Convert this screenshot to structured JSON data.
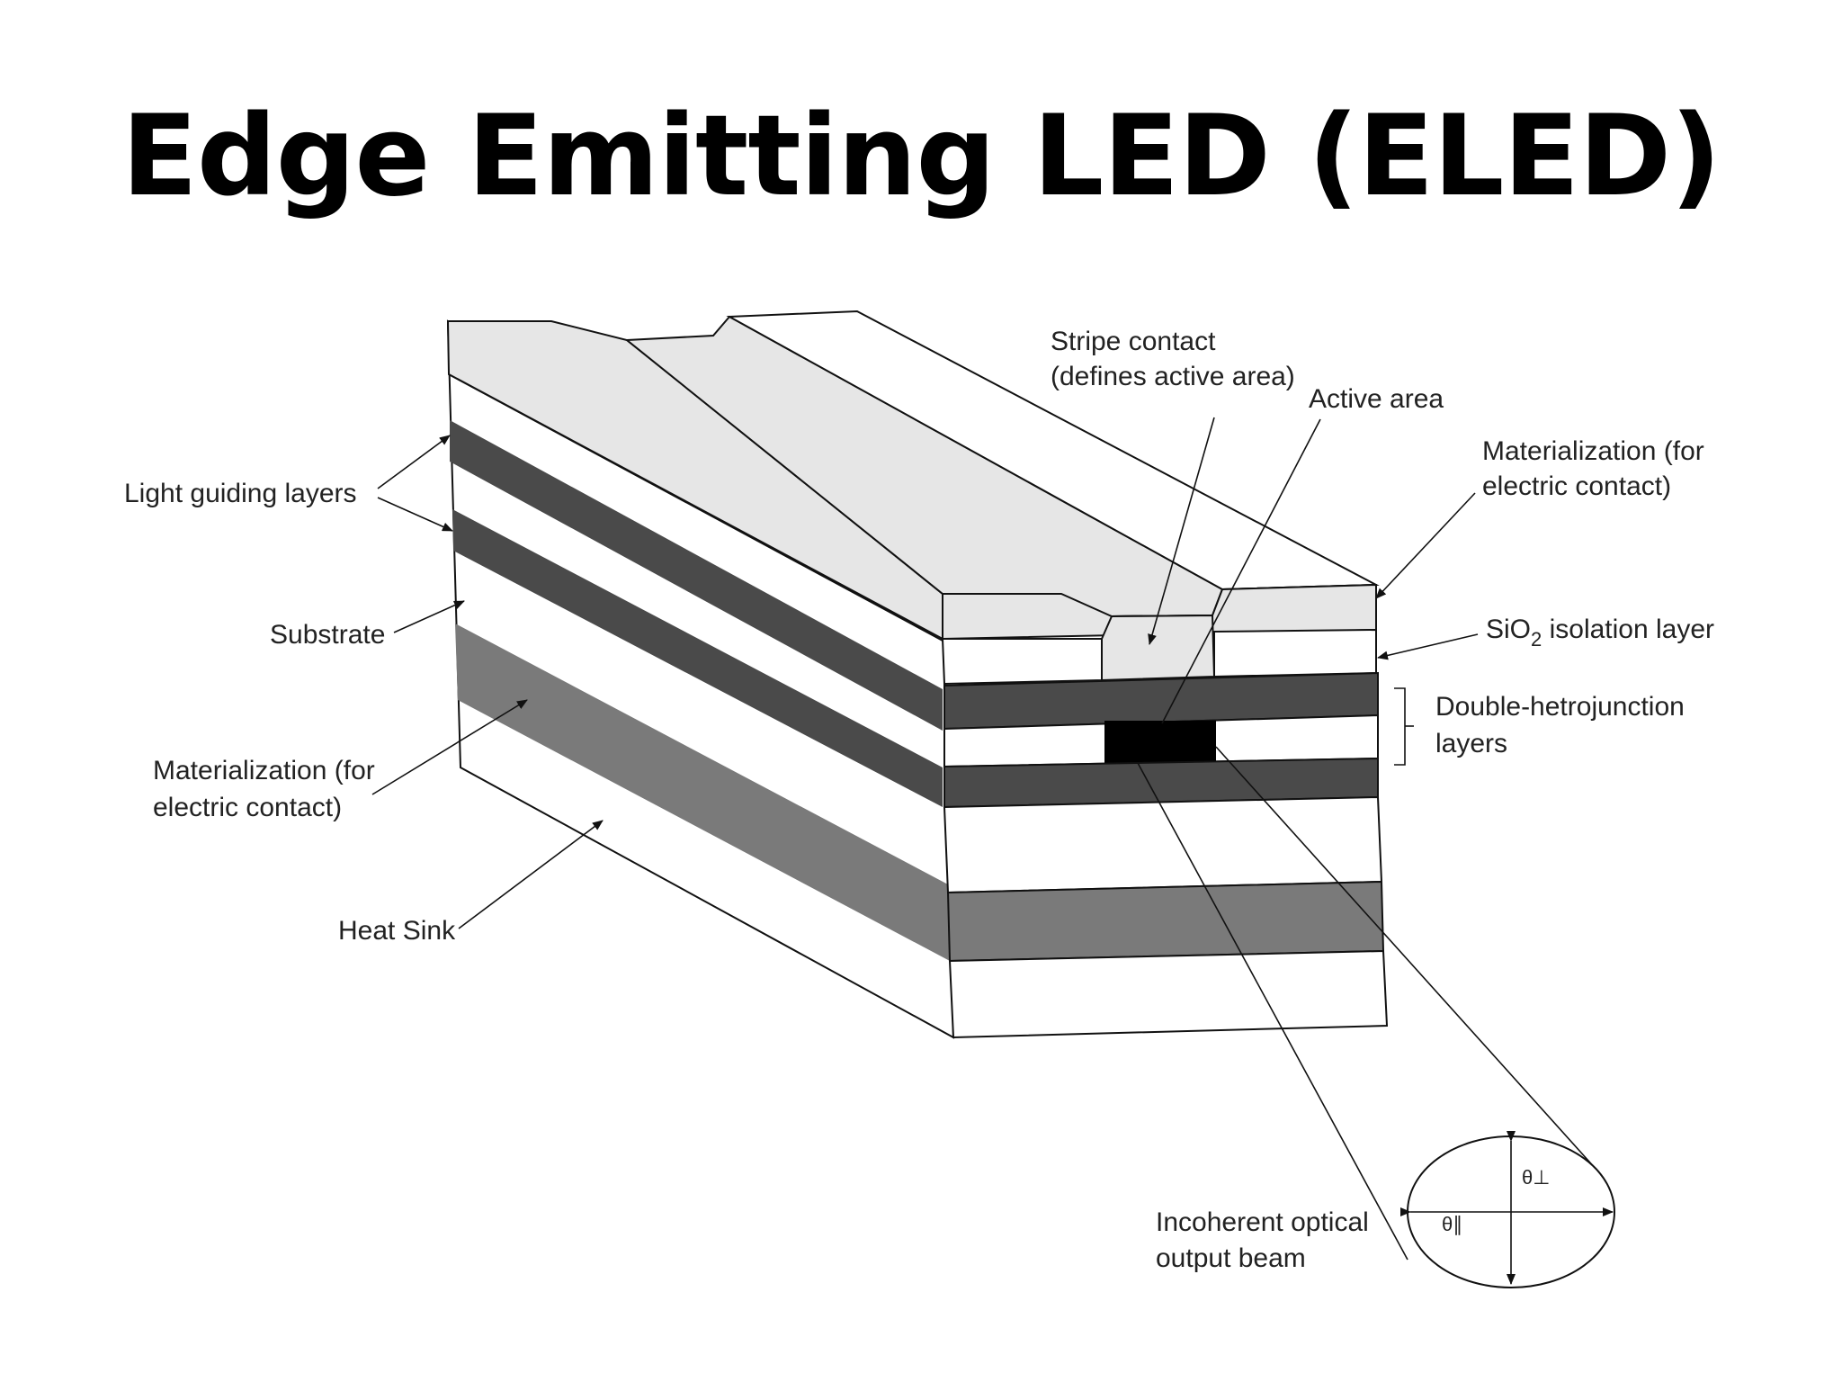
{
  "title": "Edge Emitting LED (ELED)",
  "labels": {
    "stripe_contact_line1": "Stripe contact",
    "stripe_contact_line2": "(defines active area)",
    "active_area": "Active area",
    "materialization_top_line1": "Materialization (for",
    "materialization_top_line2": "electric contact)",
    "sio2_prefix": "SiO",
    "sio2_sub": "2",
    "sio2_suffix": " isolation layer",
    "double_hetero_line1": "Double-hetrojunction",
    "double_hetero_line2": "layers",
    "light_guiding": "Light guiding layers",
    "substrate": "Substrate",
    "materialization_bottom_line1": "Materialization (for",
    "materialization_bottom_line2": "electric contact)",
    "heat_sink": "Heat Sink",
    "output_beam_line1": "Incoherent optical",
    "output_beam_line2": "output beam",
    "theta_perp": "θ⊥",
    "theta_par": "θ∥"
  },
  "colors": {
    "top_metal": "#e6e6e6",
    "guide_layer": "#4a4a4a",
    "bottom_metal": "#7a7a7a",
    "active_region": "#000000",
    "body": "#ffffff"
  }
}
